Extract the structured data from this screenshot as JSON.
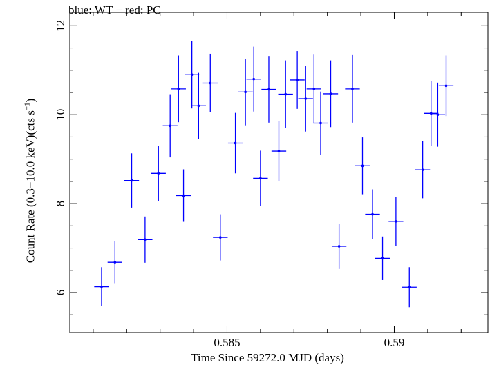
{
  "chart_data": {
    "type": "scatter",
    "title": "blue: WT − red: PC",
    "xlabel": "Time Since 59272.0 MJD (days)",
    "ylabel_main": "Count Rate (0.3−10.0 keV)(cts s",
    "ylabel_exp": "−1",
    "ylabel_close": ")",
    "xlim": [
      0.5803,
      0.5928
    ],
    "ylim": [
      5.1,
      12.3
    ],
    "xticks_major": [
      0.585,
      0.59
    ],
    "xtick_labels": [
      "0.585",
      "0.59"
    ],
    "yticks_major": [
      6,
      8,
      10,
      12
    ],
    "ytick_labels": [
      "6",
      "8",
      "10",
      "12"
    ],
    "grid": false,
    "series": [
      {
        "color": "#0000ff",
        "x_half_width": 0.00022,
        "points": [
          {
            "x": 0.58125,
            "y": 6.13,
            "yerr": 0.44
          },
          {
            "x": 0.58165,
            "y": 6.68,
            "yerr": 0.47
          },
          {
            "x": 0.58215,
            "y": 8.52,
            "yerr": 0.61
          },
          {
            "x": 0.58255,
            "y": 7.19,
            "yerr": 0.52
          },
          {
            "x": 0.58295,
            "y": 8.68,
            "yerr": 0.62
          },
          {
            "x": 0.5833,
            "y": 9.75,
            "yerr": 0.71
          },
          {
            "x": 0.58355,
            "y": 10.58,
            "yerr": 0.75
          },
          {
            "x": 0.5837,
            "y": 8.18,
            "yerr": 0.59
          },
          {
            "x": 0.58395,
            "y": 10.9,
            "yerr": 0.76
          },
          {
            "x": 0.58415,
            "y": 10.2,
            "yerr": 0.74
          },
          {
            "x": 0.5845,
            "y": 10.71,
            "yerr": 0.66
          },
          {
            "x": 0.5848,
            "y": 7.24,
            "yerr": 0.52
          },
          {
            "x": 0.58525,
            "y": 9.36,
            "yerr": 0.68
          },
          {
            "x": 0.58555,
            "y": 10.51,
            "yerr": 0.75
          },
          {
            "x": 0.5858,
            "y": 10.8,
            "yerr": 0.73
          },
          {
            "x": 0.586,
            "y": 8.57,
            "yerr": 0.62
          },
          {
            "x": 0.58625,
            "y": 10.57,
            "yerr": 0.75
          },
          {
            "x": 0.58655,
            "y": 9.18,
            "yerr": 0.67
          },
          {
            "x": 0.58675,
            "y": 10.46,
            "yerr": 0.76
          },
          {
            "x": 0.5871,
            "y": 10.78,
            "yerr": 0.65
          },
          {
            "x": 0.58735,
            "y": 10.36,
            "yerr": 0.74
          },
          {
            "x": 0.5876,
            "y": 10.58,
            "yerr": 0.77
          },
          {
            "x": 0.5878,
            "y": 9.81,
            "yerr": 0.71
          },
          {
            "x": 0.5881,
            "y": 10.47,
            "yerr": 0.75
          },
          {
            "x": 0.58835,
            "y": 7.04,
            "yerr": 0.51
          },
          {
            "x": 0.58875,
            "y": 10.58,
            "yerr": 0.76
          },
          {
            "x": 0.58905,
            "y": 8.85,
            "yerr": 0.64
          },
          {
            "x": 0.58935,
            "y": 7.76,
            "yerr": 0.56
          },
          {
            "x": 0.58965,
            "y": 6.77,
            "yerr": 0.49
          },
          {
            "x": 0.59005,
            "y": 7.6,
            "yerr": 0.55
          },
          {
            "x": 0.59045,
            "y": 6.12,
            "yerr": 0.45
          },
          {
            "x": 0.59085,
            "y": 8.76,
            "yerr": 0.64
          },
          {
            "x": 0.5911,
            "y": 10.03,
            "yerr": 0.73
          },
          {
            "x": 0.5913,
            "y": 10.0,
            "yerr": 0.72
          },
          {
            "x": 0.59155,
            "y": 10.65,
            "yerr": 0.68
          }
        ]
      }
    ]
  }
}
